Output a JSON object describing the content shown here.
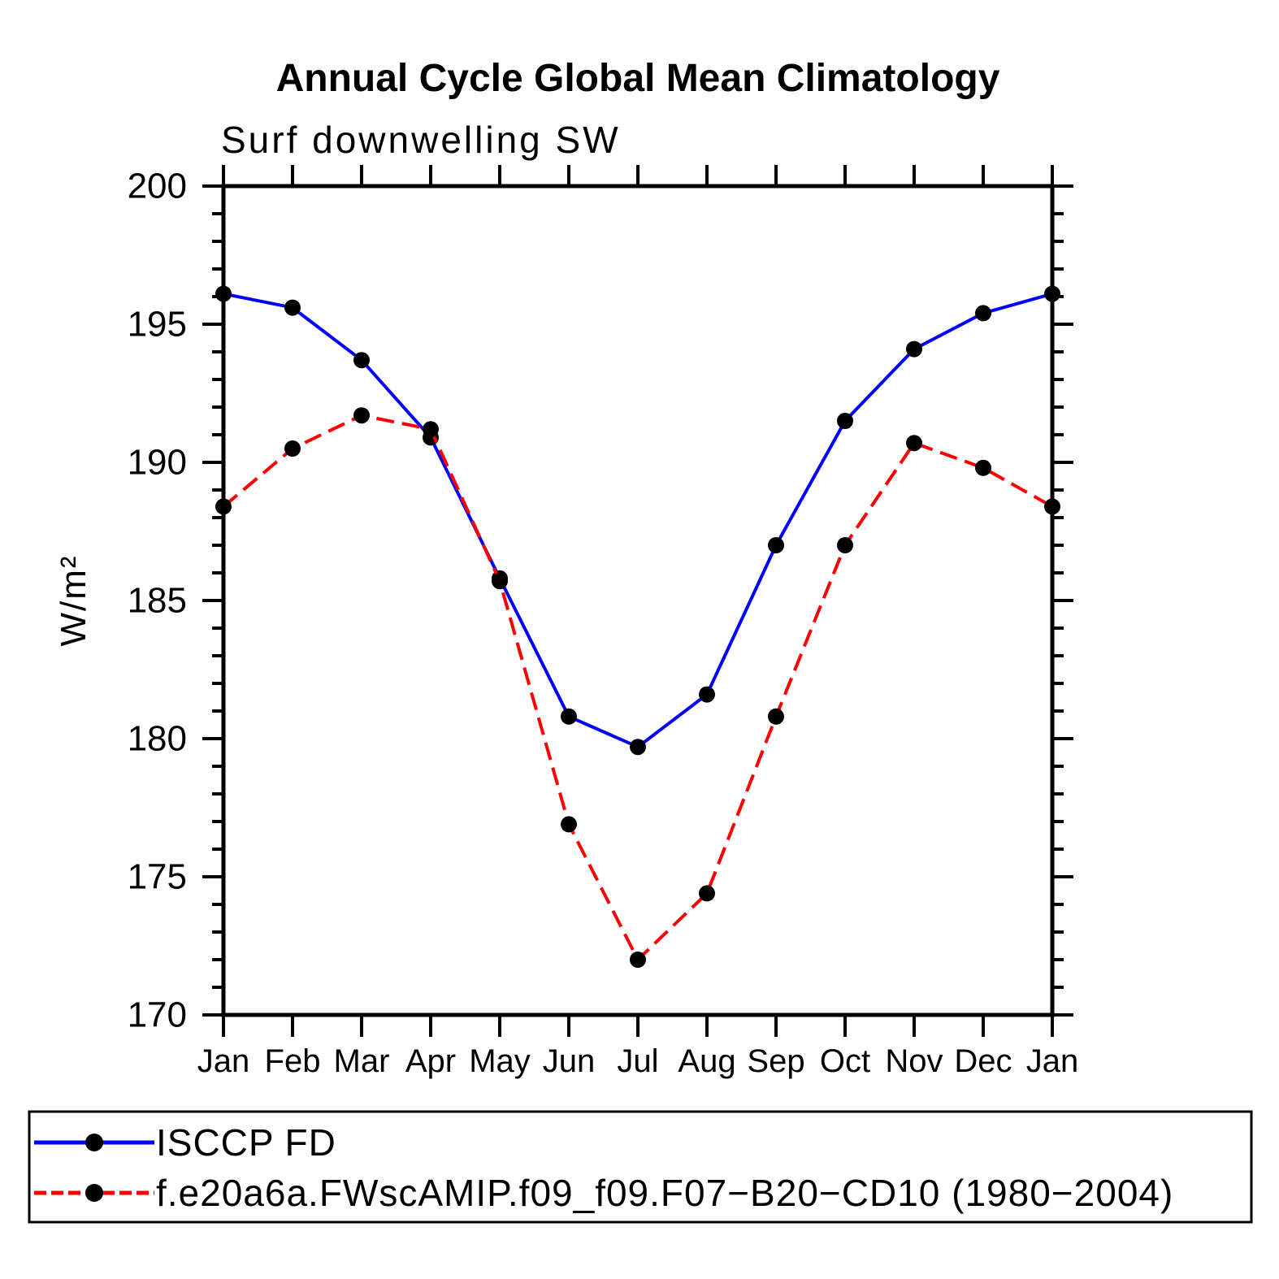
{
  "title": "Annual Cycle Global Mean Climatology",
  "subtitle": "Surf downwelling SW",
  "y_axis_label": "W/m²",
  "chart_data": {
    "type": "line",
    "categories": [
      "Jan",
      "Feb",
      "Mar",
      "Apr",
      "May",
      "Jun",
      "Jul",
      "Aug",
      "Sep",
      "Oct",
      "Nov",
      "Dec",
      "Jan"
    ],
    "ylim": [
      170,
      200
    ],
    "y_major_ticks": [
      170,
      175,
      180,
      185,
      190,
      195,
      200
    ],
    "y_minor_step": 1,
    "grid": false,
    "legend_position": "bottom-box",
    "marker": {
      "shape": "circle",
      "color": "#000000"
    },
    "series": [
      {
        "name": "ISCCP FD",
        "color": "#0000ff",
        "line_style": "solid",
        "values": [
          196.1,
          195.6,
          193.7,
          190.9,
          185.8,
          180.8,
          179.7,
          181.6,
          187.0,
          191.5,
          194.1,
          195.4,
          196.1
        ]
      },
      {
        "name": "f.e20a6a.FWscAMIP.f09_f09.F07−B20−CD10 (1980−2004)",
        "color": "#ff0000",
        "line_style": "dashed",
        "values": [
          188.4,
          190.5,
          191.7,
          191.2,
          185.7,
          176.9,
          172.0,
          174.4,
          180.8,
          187.0,
          190.7,
          189.8,
          188.4
        ]
      }
    ]
  }
}
